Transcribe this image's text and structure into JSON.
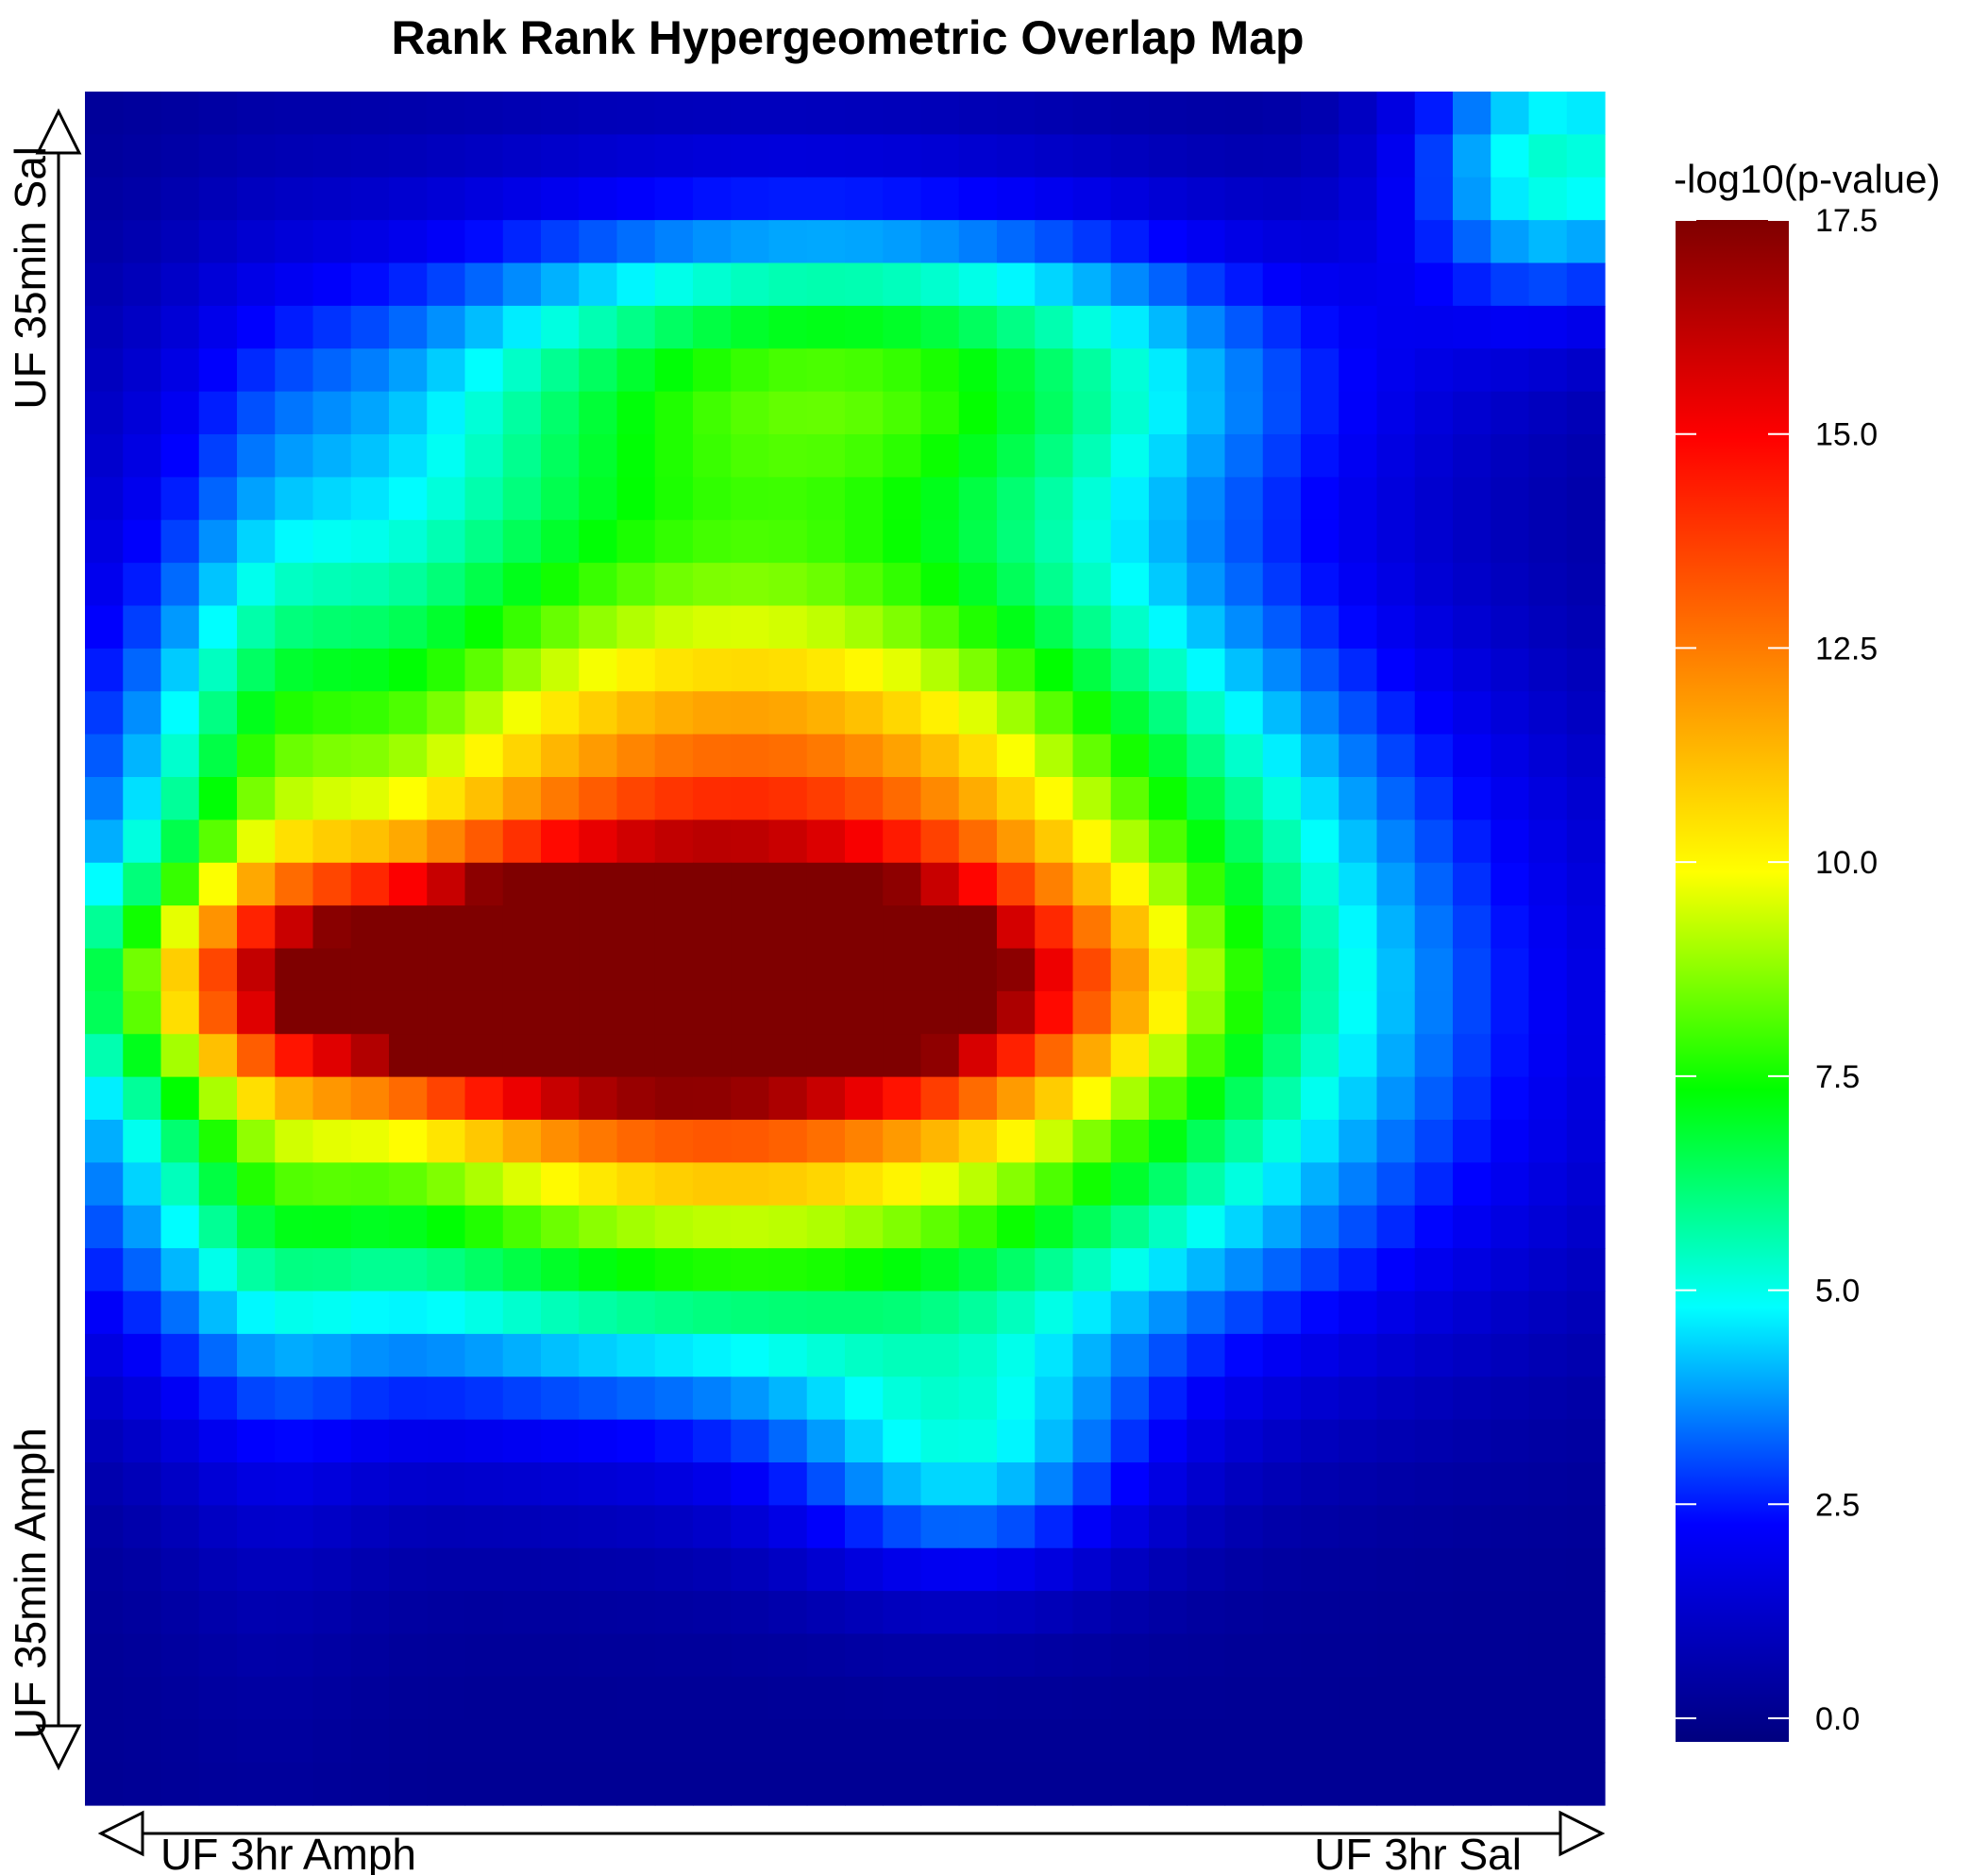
{
  "chart_data": {
    "type": "heatmap",
    "title": "Rank Rank Hypergeometric Overlap Map",
    "x_axis": {
      "start_label": "UF 3hr Amph",
      "end_label": "UF 3hr Sal"
    },
    "y_axis": {
      "top_label": "UF 35min Sal",
      "bottom_label": "UF 35min Amph"
    },
    "colorbar": {
      "title": "-log10(p-value)",
      "range": [
        0,
        17.5
      ],
      "ticks": [
        "0.0",
        "2.5",
        "5.0",
        "7.5",
        "10.0",
        "12.5",
        "15.0",
        "17.5"
      ],
      "tick_values": [
        0,
        2.5,
        5,
        7.5,
        10,
        12.5,
        15,
        17.5
      ],
      "colors": [
        "#00007f",
        "#0000ff",
        "#00ffff",
        "#00ff00",
        "#ffff00",
        "#ff7f00",
        "#ff0000",
        "#7f0000"
      ]
    },
    "grid_size": [
      40,
      40
    ],
    "peak": {
      "x_fraction": 0.35,
      "y_fraction": 0.52,
      "value": 17.5
    },
    "blobs": [
      {
        "cx": 0.35,
        "cy": 0.52,
        "sx": 0.17,
        "sy": 0.04,
        "amp": 17.5
      },
      {
        "cx": 0.45,
        "cy": 0.48,
        "sx": 0.26,
        "sy": 0.12,
        "amp": 9.5
      },
      {
        "cx": 0.42,
        "cy": 0.33,
        "sx": 0.22,
        "sy": 0.15,
        "amp": 5.5
      },
      {
        "cx": 0.42,
        "cy": 0.63,
        "sx": 0.28,
        "sy": 0.1,
        "amp": 5.8
      },
      {
        "cx": 0.52,
        "cy": 0.16,
        "sx": 0.2,
        "sy": 0.06,
        "amp": 4.8
      },
      {
        "cx": 0.58,
        "cy": 0.8,
        "sx": 0.08,
        "sy": 0.05,
        "amp": 3.2
      },
      {
        "cx": 0.97,
        "cy": 0.04,
        "sx": 0.07,
        "sy": 0.06,
        "amp": 5.0
      },
      {
        "cx": 0.12,
        "cy": 0.5,
        "sx": 0.05,
        "sy": 0.2,
        "amp": 2.8
      }
    ]
  }
}
